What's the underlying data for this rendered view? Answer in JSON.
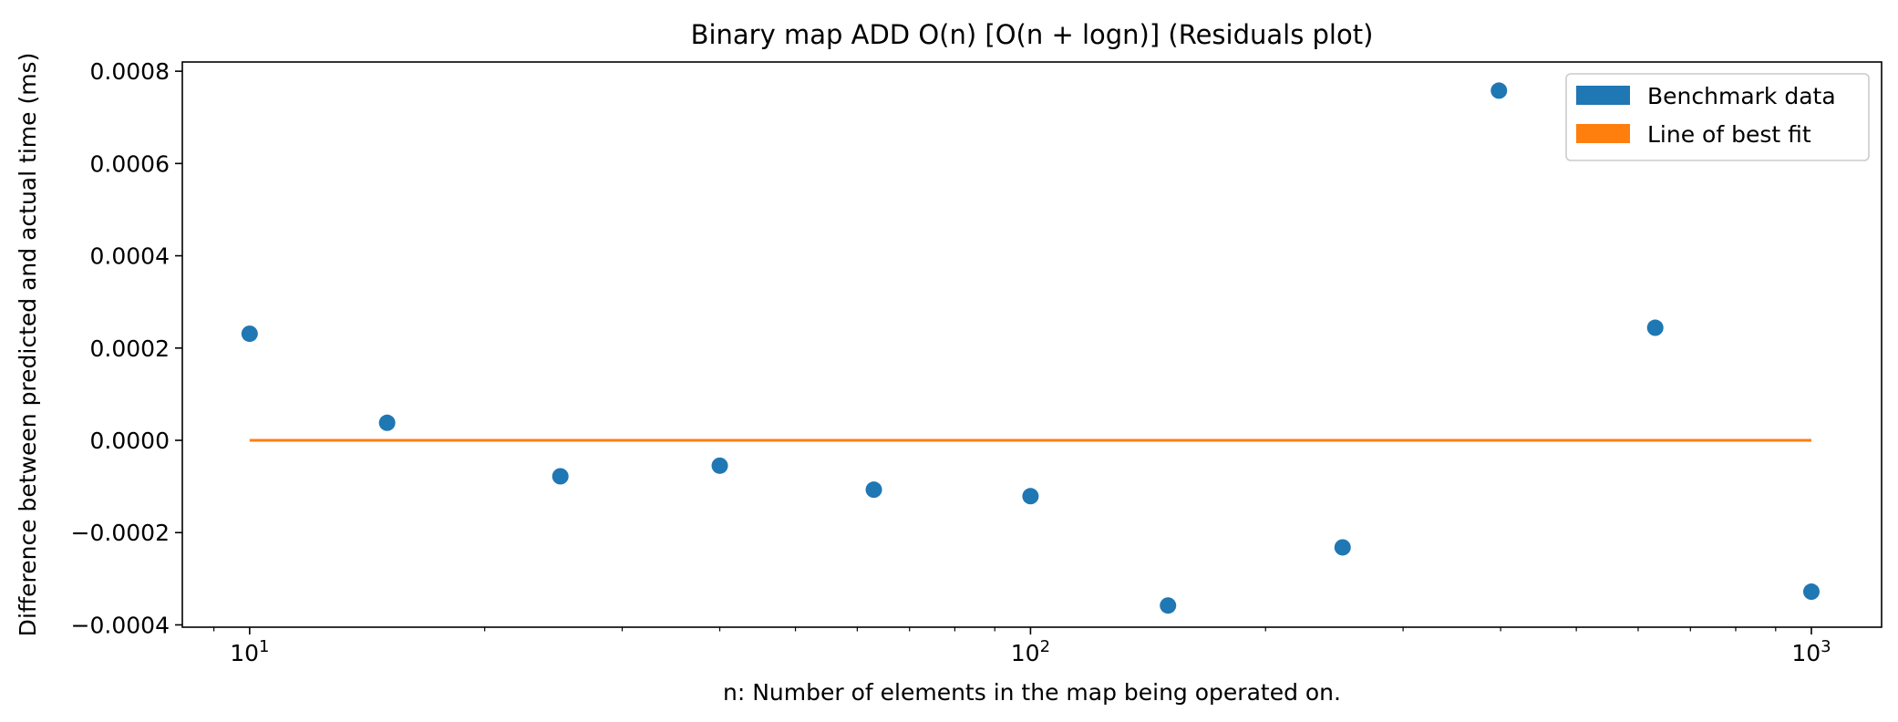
{
  "chart_data": {
    "type": "scatter",
    "title": "Binary map ADD O(n) [O(n + logn)]  (Residuals plot)",
    "xlabel": "n: Number of elements in the map being operated on.",
    "ylabel": "Difference between predicted and actual time (ms)",
    "xscale": "log",
    "xlim": [
      8.2,
      1230
    ],
    "ylim": [
      -0.000405,
      0.00082
    ],
    "x_ticks": [
      {
        "value": 10,
        "base": "10",
        "exp": "1"
      },
      {
        "value": 100,
        "base": "10",
        "exp": "2"
      },
      {
        "value": 1000,
        "base": "10",
        "exp": "3"
      }
    ],
    "y_ticks": [
      {
        "value": -0.0004,
        "label": "−0.0004"
      },
      {
        "value": -0.0002,
        "label": "−0.0002"
      },
      {
        "value": 0.0,
        "label": "0.0000"
      },
      {
        "value": 0.0002,
        "label": "0.0002"
      },
      {
        "value": 0.0004,
        "label": "0.0004"
      },
      {
        "value": 0.0006,
        "label": "0.0006"
      },
      {
        "value": 0.0008,
        "label": "0.0008"
      }
    ],
    "grid": false,
    "legend_position": "top-right",
    "series": [
      {
        "name": "Benchmark data",
        "kind": "scatter",
        "color": "#1f77b4",
        "points": [
          [
            10,
            0.000231
          ],
          [
            15,
            3.8e-05
          ],
          [
            25,
            -7.8e-05
          ],
          [
            40,
            -5.5e-05
          ],
          [
            63,
            -0.000107
          ],
          [
            100,
            -0.000121
          ],
          [
            150,
            -0.000358
          ],
          [
            251,
            -0.000232
          ],
          [
            398,
            0.000758
          ],
          [
            631,
            0.000244
          ],
          [
            1000,
            -0.000328
          ]
        ]
      },
      {
        "name": "Line of best fit",
        "kind": "line",
        "color": "#ff7f0e",
        "points": [
          [
            10,
            0.0
          ],
          [
            1000,
            0.0
          ]
        ]
      }
    ]
  }
}
